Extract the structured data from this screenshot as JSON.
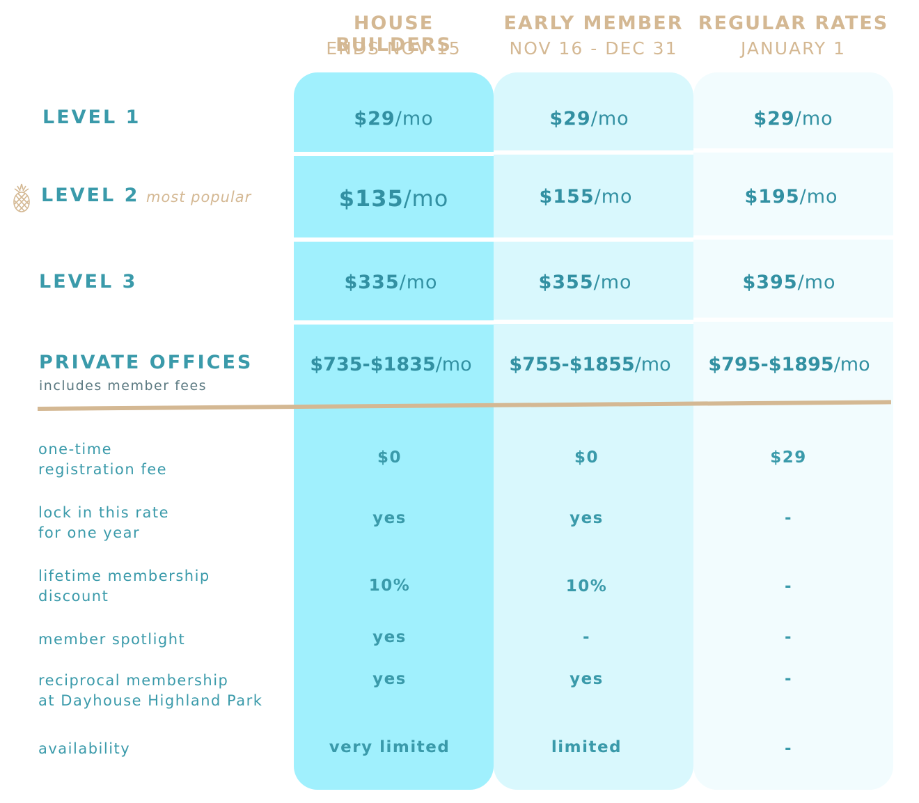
{
  "columns": [
    {
      "title": "HOUSE BUILDERS",
      "subtitle": "ENDS NOV 15"
    },
    {
      "title": "EARLY MEMBER",
      "subtitle": "NOV 16 - DEC 31"
    },
    {
      "title": "REGULAR RATES",
      "subtitle": "JANUARY 1"
    }
  ],
  "levels": [
    {
      "name": "LEVEL 1",
      "prices": [
        "$29",
        "$29",
        "$29"
      ],
      "suffix": "/mo"
    },
    {
      "name": "LEVEL 2",
      "tag": "most popular",
      "prices": [
        "$135",
        "$155",
        "$195"
      ],
      "suffix": "/mo"
    },
    {
      "name": "LEVEL 3",
      "prices": [
        "$335",
        "$355",
        "$395"
      ],
      "suffix": "/mo"
    },
    {
      "name": "PRIVATE OFFICES",
      "note": "includes member fees",
      "prices": [
        "$735-$1835",
        "$755-$1855",
        "$795-$1895"
      ],
      "suffix": "/mo"
    }
  ],
  "features": [
    {
      "line1": "one-time",
      "line2": "registration fee",
      "values": [
        "$0",
        "$0",
        "$29"
      ]
    },
    {
      "line1": "lock in this rate",
      "line2": "for one year",
      "values": [
        "yes",
        "yes",
        "-"
      ]
    },
    {
      "line1": "lifetime membership",
      "line2": "discount",
      "values": [
        "10%",
        "10%",
        "-"
      ]
    },
    {
      "line1": "member spotlight",
      "line2": "",
      "values": [
        "yes",
        "-",
        "-"
      ]
    },
    {
      "line1": "reciprocal membership",
      "line2": "at Dayhouse Highland Park",
      "values": [
        "yes",
        "yes",
        "-"
      ]
    },
    {
      "line1": "availability",
      "line2": "",
      "values": [
        "very limited",
        "limited",
        "-"
      ]
    }
  ],
  "colors": {
    "gold": "#d4b893",
    "teal": "#3a9aaa",
    "col1": "#a0f0fd",
    "col2": "#d9f8fd",
    "col3": "#f2fcfe"
  },
  "icons": {
    "popular": "pineapple-icon"
  }
}
